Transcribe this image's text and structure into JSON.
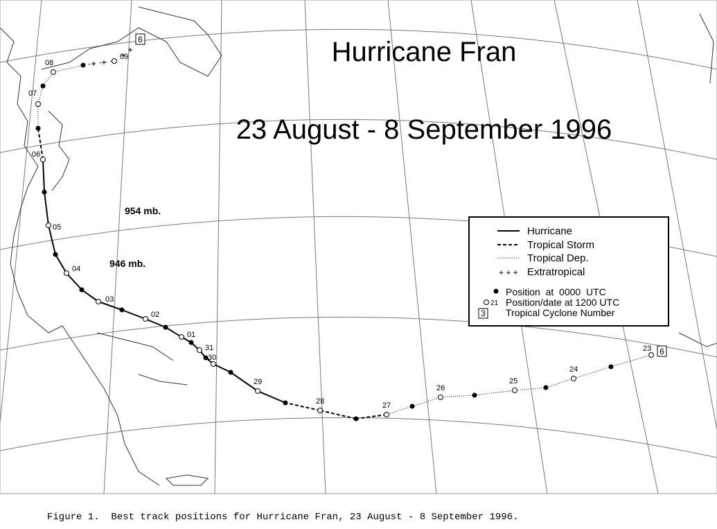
{
  "title": "Hurricane Fran",
  "subtitle": "23 August - 8 September 1996",
  "annotations": [
    "954 mb.",
    "946 mb."
  ],
  "track": {
    "date_labels": [
      "23",
      "24",
      "25",
      "26",
      "27",
      "28",
      "29",
      "30",
      "31",
      "01",
      "02",
      "03",
      "04",
      "05",
      "06",
      "07",
      "08",
      "09"
    ],
    "cyclone_number": "6"
  },
  "legend": {
    "items": [
      {
        "label": "Hurricane"
      },
      {
        "label": "Tropical Storm"
      },
      {
        "label": "Tropical Dep."
      },
      {
        "symbol": "+ + +",
        "label": "Extratropical"
      },
      {
        "label": "Position  at  0000  UTC"
      },
      {
        "symbol": "21",
        "label": "Position/date at 1200 UTC"
      },
      {
        "symbol": "3",
        "label": "Tropical Cyclone Number"
      }
    ]
  },
  "caption": "Figure 1.  Best track positions for Hurricane Fran, 23 August - 8 September 1996."
}
